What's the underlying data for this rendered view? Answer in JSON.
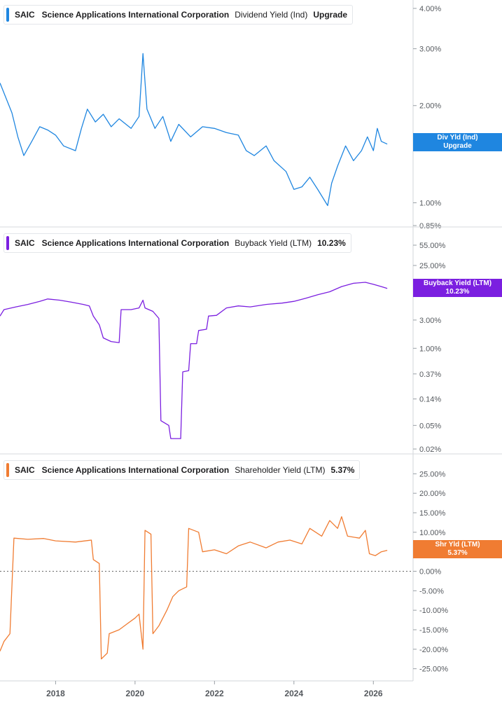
{
  "chart_data": [
    {
      "type": "line",
      "ticker": "SAIC",
      "company": "Science Applications International Corporation",
      "metric": "Dividend Yield (Ind)",
      "current_value_label": "Upgrade",
      "flag_label": "Div Yld (Ind)",
      "flag_value": "Upgrade",
      "color": "#1f86e0",
      "scale": "log",
      "ylim": [
        0.85,
        4.0
      ],
      "y_ticks": [
        {
          "v": 4.0,
          "label": "4.00%"
        },
        {
          "v": 3.0,
          "label": "3.00%"
        },
        {
          "v": 2.0,
          "label": "2.00%"
        },
        {
          "v": 1.0,
          "label": "1.00%"
        },
        {
          "v": 0.85,
          "label": "0.85%"
        }
      ],
      "points": [
        [
          2016.6,
          2.35
        ],
        [
          2016.9,
          1.9
        ],
        [
          2017.05,
          1.6
        ],
        [
          2017.2,
          1.4
        ],
        [
          2017.4,
          1.55
        ],
        [
          2017.6,
          1.72
        ],
        [
          2017.8,
          1.68
        ],
        [
          2018.0,
          1.62
        ],
        [
          2018.2,
          1.5
        ],
        [
          2018.5,
          1.45
        ],
        [
          2018.65,
          1.7
        ],
        [
          2018.8,
          1.95
        ],
        [
          2019.0,
          1.78
        ],
        [
          2019.2,
          1.88
        ],
        [
          2019.4,
          1.72
        ],
        [
          2019.6,
          1.82
        ],
        [
          2019.9,
          1.7
        ],
        [
          2020.1,
          1.85
        ],
        [
          2020.2,
          2.9
        ],
        [
          2020.3,
          1.95
        ],
        [
          2020.5,
          1.7
        ],
        [
          2020.7,
          1.85
        ],
        [
          2020.9,
          1.55
        ],
        [
          2021.1,
          1.75
        ],
        [
          2021.4,
          1.6
        ],
        [
          2021.7,
          1.72
        ],
        [
          2022.0,
          1.7
        ],
        [
          2022.3,
          1.65
        ],
        [
          2022.6,
          1.62
        ],
        [
          2022.8,
          1.45
        ],
        [
          2023.0,
          1.4
        ],
        [
          2023.3,
          1.5
        ],
        [
          2023.5,
          1.35
        ],
        [
          2023.8,
          1.25
        ],
        [
          2024.0,
          1.1
        ],
        [
          2024.2,
          1.12
        ],
        [
          2024.4,
          1.2
        ],
        [
          2024.6,
          1.1
        ],
        [
          2024.85,
          0.98
        ],
        [
          2024.95,
          1.15
        ],
        [
          2025.1,
          1.3
        ],
        [
          2025.3,
          1.5
        ],
        [
          2025.5,
          1.35
        ],
        [
          2025.7,
          1.45
        ],
        [
          2025.85,
          1.6
        ],
        [
          2026.0,
          1.45
        ],
        [
          2026.1,
          1.7
        ],
        [
          2026.2,
          1.55
        ],
        [
          2026.35,
          1.52
        ]
      ]
    },
    {
      "type": "line",
      "ticker": "SAIC",
      "company": "Science Applications International Corporation",
      "metric": "Buyback Yield (LTM)",
      "current_value_label": "10.23%",
      "flag_label": "Buyback Yield (LTM)",
      "flag_value": "10.23%",
      "color": "#7b1fe0",
      "scale": "log",
      "ylim": [
        0.02,
        55.0
      ],
      "y_ticks": [
        {
          "v": 55.0,
          "label": "55.00%"
        },
        {
          "v": 25.0,
          "label": "25.00%"
        },
        {
          "v": 3.0,
          "label": "3.00%"
        },
        {
          "v": 1.0,
          "label": "1.00%"
        },
        {
          "v": 0.37,
          "label": "0.37%"
        },
        {
          "v": 0.14,
          "label": "0.14%"
        },
        {
          "v": 0.05,
          "label": "0.05%"
        },
        {
          "v": 0.02,
          "label": "0.02%"
        }
      ],
      "points": [
        [
          2016.6,
          3.5
        ],
        [
          2016.7,
          4.5
        ],
        [
          2017.0,
          5.0
        ],
        [
          2017.3,
          5.5
        ],
        [
          2017.6,
          6.2
        ],
        [
          2017.8,
          6.8
        ],
        [
          2018.1,
          6.5
        ],
        [
          2018.4,
          6.0
        ],
        [
          2018.7,
          5.5
        ],
        [
          2018.85,
          5.2
        ],
        [
          2018.95,
          3.5
        ],
        [
          2019.1,
          2.5
        ],
        [
          2019.2,
          1.5
        ],
        [
          2019.4,
          1.3
        ],
        [
          2019.6,
          1.25
        ],
        [
          2019.65,
          4.5
        ],
        [
          2019.9,
          4.5
        ],
        [
          2020.1,
          4.8
        ],
        [
          2020.2,
          6.5
        ],
        [
          2020.25,
          4.8
        ],
        [
          2020.45,
          4.2
        ],
        [
          2020.6,
          3.2
        ],
        [
          2020.65,
          0.06
        ],
        [
          2020.85,
          0.05
        ],
        [
          2020.9,
          0.03
        ],
        [
          2021.15,
          0.03
        ],
        [
          2021.2,
          0.4
        ],
        [
          2021.35,
          0.42
        ],
        [
          2021.4,
          1.2
        ],
        [
          2021.55,
          1.2
        ],
        [
          2021.6,
          2.0
        ],
        [
          2021.8,
          2.1
        ],
        [
          2021.85,
          3.5
        ],
        [
          2022.05,
          3.6
        ],
        [
          2022.3,
          4.8
        ],
        [
          2022.6,
          5.2
        ],
        [
          2022.9,
          5.0
        ],
        [
          2023.3,
          5.5
        ],
        [
          2023.7,
          5.8
        ],
        [
          2024.0,
          6.2
        ],
        [
          2024.3,
          7.0
        ],
        [
          2024.6,
          8.0
        ],
        [
          2024.9,
          9.0
        ],
        [
          2025.2,
          11.0
        ],
        [
          2025.5,
          12.5
        ],
        [
          2025.8,
          13.0
        ],
        [
          2026.0,
          12.0
        ],
        [
          2026.2,
          11.0
        ],
        [
          2026.35,
          10.23
        ]
      ]
    },
    {
      "type": "line",
      "ticker": "SAIC",
      "company": "Science Applications International Corporation",
      "metric": "Shareholder Yield (LTM)",
      "current_value_label": "5.37%",
      "flag_label": "Shr Yld (LTM)",
      "flag_value": "5.37%",
      "color": "#f07c32",
      "scale": "linear",
      "ylim": [
        -26.5,
        26.5
      ],
      "zero_line": true,
      "y_ticks": [
        {
          "v": 25,
          "label": "25.00%"
        },
        {
          "v": 20,
          "label": "20.00%"
        },
        {
          "v": 15,
          "label": "15.00%"
        },
        {
          "v": 10,
          "label": "10.00%"
        },
        {
          "v": 5,
          "label": "5.00%"
        },
        {
          "v": 0,
          "label": "0.00%"
        },
        {
          "v": -5,
          "label": "-5.00%"
        },
        {
          "v": -10,
          "label": "-10.00%"
        },
        {
          "v": -15,
          "label": "-15.00%"
        },
        {
          "v": -20,
          "label": "-20.00%"
        },
        {
          "v": -25,
          "label": "-25.00%"
        }
      ],
      "points": [
        [
          2016.6,
          -20.5
        ],
        [
          2016.7,
          -18.0
        ],
        [
          2016.85,
          -16.0
        ],
        [
          2016.95,
          8.5
        ],
        [
          2017.3,
          8.2
        ],
        [
          2017.7,
          8.4
        ],
        [
          2018.0,
          7.8
        ],
        [
          2018.5,
          7.5
        ],
        [
          2018.9,
          8.0
        ],
        [
          2018.95,
          3.0
        ],
        [
          2019.1,
          2.0
        ],
        [
          2019.15,
          -22.5
        ],
        [
          2019.3,
          -21.0
        ],
        [
          2019.35,
          -16.0
        ],
        [
          2019.6,
          -15.0
        ],
        [
          2019.8,
          -13.5
        ],
        [
          2020.0,
          -12.0
        ],
        [
          2020.1,
          -11.0
        ],
        [
          2020.2,
          -20.0
        ],
        [
          2020.25,
          10.5
        ],
        [
          2020.4,
          9.5
        ],
        [
          2020.45,
          -16.0
        ],
        [
          2020.6,
          -14.0
        ],
        [
          2020.8,
          -10.0
        ],
        [
          2020.95,
          -6.5
        ],
        [
          2021.1,
          -5.0
        ],
        [
          2021.3,
          -4.0
        ],
        [
          2021.35,
          11.0
        ],
        [
          2021.6,
          10.0
        ],
        [
          2021.7,
          5.0
        ],
        [
          2022.0,
          5.5
        ],
        [
          2022.3,
          4.5
        ],
        [
          2022.6,
          6.5
        ],
        [
          2022.9,
          7.5
        ],
        [
          2023.3,
          6.0
        ],
        [
          2023.6,
          7.5
        ],
        [
          2023.9,
          8.0
        ],
        [
          2024.2,
          7.0
        ],
        [
          2024.4,
          11.0
        ],
        [
          2024.7,
          9.0
        ],
        [
          2024.9,
          13.0
        ],
        [
          2025.1,
          11.0
        ],
        [
          2025.2,
          14.0
        ],
        [
          2025.35,
          9.0
        ],
        [
          2025.65,
          8.5
        ],
        [
          2025.8,
          10.5
        ],
        [
          2025.9,
          4.5
        ],
        [
          2026.05,
          4.0
        ],
        [
          2026.2,
          5.0
        ],
        [
          2026.35,
          5.37
        ]
      ]
    }
  ],
  "x_axis": {
    "ticks": [
      {
        "v": 2018,
        "label": "2018"
      },
      {
        "v": 2020,
        "label": "2020"
      },
      {
        "v": 2022,
        "label": "2022"
      },
      {
        "v": 2024,
        "label": "2024"
      },
      {
        "v": 2026,
        "label": "2026"
      }
    ],
    "xlim": [
      2016.6,
      2027.0
    ]
  }
}
